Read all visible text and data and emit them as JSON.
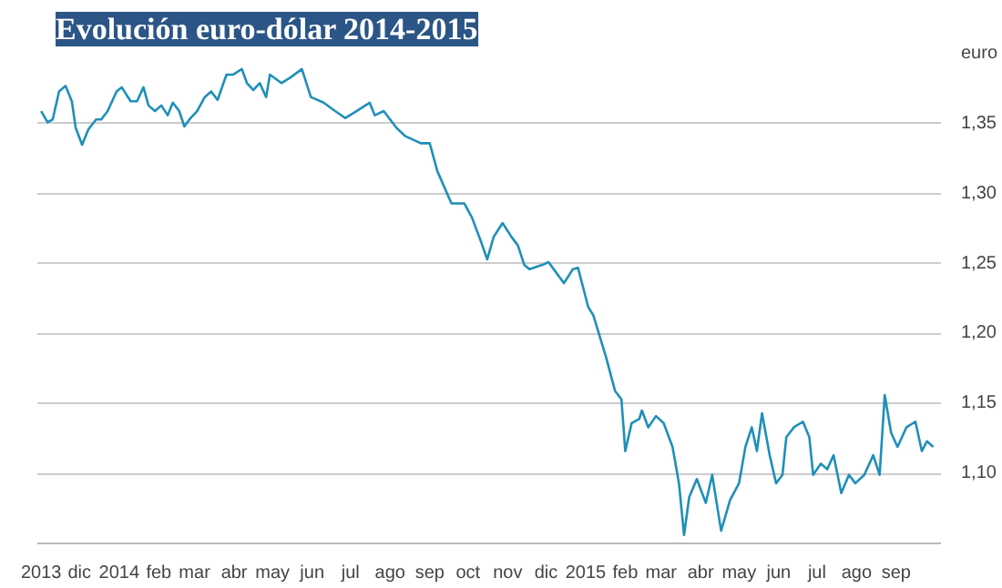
{
  "chart_data": {
    "type": "line",
    "title": "Evolución euro-dólar 2014-2015",
    "x": [
      "2013-11-01",
      "2013-11-06",
      "2013-11-10",
      "2013-11-15",
      "2013-11-20",
      "2013-11-25",
      "2013-11-28",
      "2013-12-03",
      "2013-12-08",
      "2013-12-14",
      "2013-12-18",
      "2013-12-23",
      "2013-12-30",
      "2014-01-03",
      "2014-01-10",
      "2014-01-15",
      "2014-01-20",
      "2014-01-24",
      "2014-01-29",
      "2014-02-03",
      "2014-02-08",
      "2014-02-12",
      "2014-02-17",
      "2014-02-21",
      "2014-02-25",
      "2014-03-03",
      "2014-03-09",
      "2014-03-14",
      "2014-03-19",
      "2014-03-26",
      "2014-03-31",
      "2014-04-07",
      "2014-04-11",
      "2014-04-16",
      "2014-04-21",
      "2014-04-26",
      "2014-04-29",
      "2014-05-08",
      "2014-05-15",
      "2014-05-24",
      "2014-05-31",
      "2014-06-10",
      "2014-06-19",
      "2014-06-27",
      "2014-07-04",
      "2014-07-16",
      "2014-07-20",
      "2014-07-27",
      "2014-08-06",
      "2014-08-13",
      "2014-08-25",
      "2014-09-01",
      "2014-09-07",
      "2014-09-18",
      "2014-09-28",
      "2014-10-04",
      "2014-10-11",
      "2014-10-16",
      "2014-10-21",
      "2014-10-28",
      "2014-11-04",
      "2014-11-09",
      "2014-11-14",
      "2014-11-18",
      "2014-11-28",
      "2014-12-03",
      "2014-12-07",
      "2014-12-15",
      "2014-12-22",
      "2014-12-26",
      "2015-01-03",
      "2015-01-07",
      "2015-01-17",
      "2015-01-24",
      "2015-01-29",
      "2015-02-01",
      "2015-02-06",
      "2015-02-12",
      "2015-02-14",
      "2015-02-19",
      "2015-02-25",
      "2015-03-03",
      "2015-03-10",
      "2015-03-15",
      "2015-03-19",
      "2015-03-23",
      "2015-03-29",
      "2015-04-05",
      "2015-04-10",
      "2015-04-17",
      "2015-04-24",
      "2015-05-01",
      "2015-05-06",
      "2015-05-11",
      "2015-05-15",
      "2015-05-19",
      "2015-05-25",
      "2015-05-30",
      "2015-06-04",
      "2015-06-07",
      "2015-06-13",
      "2015-06-20",
      "2015-06-25",
      "2015-06-28",
      "2015-07-04",
      "2015-07-09",
      "2015-07-14",
      "2015-07-20",
      "2015-07-26",
      "2015-07-31",
      "2015-08-07",
      "2015-08-14",
      "2015-08-19",
      "2015-08-23",
      "2015-08-28",
      "2015-09-02",
      "2015-09-09",
      "2015-09-16",
      "2015-09-21",
      "2015-09-25",
      "2015-09-30"
    ],
    "series": [
      {
        "color": "#1f8fb8",
        "values": [
          1.359,
          1.351,
          1.353,
          1.373,
          1.377,
          1.366,
          1.347,
          1.335,
          1.346,
          1.353,
          1.353,
          1.359,
          1.373,
          1.376,
          1.366,
          1.366,
          1.376,
          1.363,
          1.359,
          1.363,
          1.356,
          1.365,
          1.359,
          1.348,
          1.353,
          1.359,
          1.369,
          1.373,
          1.367,
          1.385,
          1.385,
          1.389,
          1.379,
          1.374,
          1.379,
          1.369,
          1.385,
          1.379,
          1.383,
          1.389,
          1.369,
          1.365,
          1.359,
          1.354,
          1.358,
          1.365,
          1.356,
          1.359,
          1.347,
          1.341,
          1.336,
          1.336,
          1.316,
          1.293,
          1.293,
          1.283,
          1.266,
          1.253,
          1.269,
          1.279,
          1.269,
          1.263,
          1.249,
          1.246,
          1.249,
          1.251,
          1.246,
          1.236,
          1.246,
          1.247,
          1.219,
          1.213,
          1.183,
          1.159,
          1.153,
          1.116,
          1.136,
          1.139,
          1.145,
          1.133,
          1.141,
          1.136,
          1.119,
          1.093,
          1.056,
          1.083,
          1.096,
          1.079,
          1.099,
          1.059,
          1.081,
          1.093,
          1.119,
          1.133,
          1.116,
          1.143,
          1.113,
          1.093,
          1.099,
          1.126,
          1.133,
          1.137,
          1.126,
          1.099,
          1.107,
          1.103,
          1.113,
          1.086,
          1.099,
          1.093,
          1.099,
          1.113,
          1.099,
          1.156,
          1.129,
          1.119,
          1.133,
          1.137,
          1.116,
          1.123,
          1.119
        ]
      }
    ],
    "xlim": [
      "2013-10-29",
      "2015-10-06"
    ],
    "xticks": [
      {
        "value": "2013-11-01",
        "label": "2013"
      },
      {
        "value": "2013-12-01",
        "label": "dic"
      },
      {
        "value": "2014-01-01",
        "label": "2014"
      },
      {
        "value": "2014-02-01",
        "label": "feb"
      },
      {
        "value": "2014-03-01",
        "label": "mar"
      },
      {
        "value": "2014-04-01",
        "label": "abr"
      },
      {
        "value": "2014-05-01",
        "label": "may"
      },
      {
        "value": "2014-06-01",
        "label": "jun"
      },
      {
        "value": "2014-07-01",
        "label": "jul"
      },
      {
        "value": "2014-08-01",
        "label": "ago"
      },
      {
        "value": "2014-09-01",
        "label": "sep"
      },
      {
        "value": "2014-10-01",
        "label": "oct"
      },
      {
        "value": "2014-11-01",
        "label": "nov"
      },
      {
        "value": "2014-12-01",
        "label": "dic"
      },
      {
        "value": "2015-01-01",
        "label": "2015"
      },
      {
        "value": "2015-02-01",
        "label": "feb"
      },
      {
        "value": "2015-03-01",
        "label": "mar"
      },
      {
        "value": "2015-04-01",
        "label": "abr"
      },
      {
        "value": "2015-05-01",
        "label": "may"
      },
      {
        "value": "2015-06-01",
        "label": "jun"
      },
      {
        "value": "2015-07-01",
        "label": "jul"
      },
      {
        "value": "2015-08-01",
        "label": "ago"
      },
      {
        "value": "2015-09-01",
        "label": "sep"
      }
    ],
    "ylim": [
      1.05,
      1.4
    ],
    "yticks": [
      {
        "value": 1.1,
        "label": "1,10"
      },
      {
        "value": 1.15,
        "label": "1,15"
      },
      {
        "value": 1.2,
        "label": "1,20"
      },
      {
        "value": 1.25,
        "label": "1,25"
      },
      {
        "value": 1.3,
        "label": "1,30"
      },
      {
        "value": 1.35,
        "label": "1,35"
      },
      {
        "value": 1.4,
        "label": "euro"
      }
    ],
    "grid": "y",
    "marker": "none",
    "line_style": "solid"
  }
}
